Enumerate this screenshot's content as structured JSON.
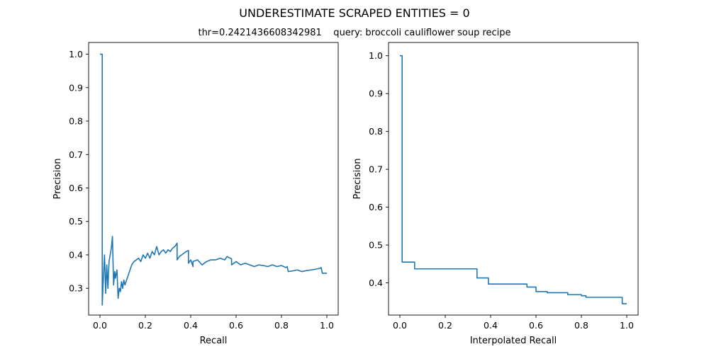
{
  "figure": {
    "suptitle": "UNDERESTIMATE SCRAPED ENTITIES = 0",
    "subtitle": "thr=0.2421436608342981    query: broccoli cauliflower soup recipe"
  },
  "chart_data": [
    {
      "type": "line",
      "xlabel": "Recall",
      "ylabel": "Precision",
      "xlim": [
        -0.05,
        1.05
      ],
      "ylim": [
        0.22,
        1.035
      ],
      "xticks": [
        0.0,
        0.2,
        0.4,
        0.6,
        0.8,
        1.0
      ],
      "xtick_labels": [
        "0.0",
        "0.2",
        "0.4",
        "0.6",
        "0.8",
        "1.0"
      ],
      "yticks": [
        0.3,
        0.4,
        0.5,
        0.6,
        0.7,
        0.8,
        0.9,
        1.0
      ],
      "ytick_labels": [
        "0.3",
        "0.4",
        "0.5",
        "0.6",
        "0.7",
        "0.8",
        "0.9",
        "1.0"
      ],
      "color": "#1f77b4",
      "grid": false,
      "series": [
        {
          "x": [
            0.0,
            0.01,
            0.01,
            0.015,
            0.02,
            0.025,
            0.03,
            0.035,
            0.04,
            0.045,
            0.05,
            0.055,
            0.06,
            0.065,
            0.068,
            0.075,
            0.08,
            0.085,
            0.09,
            0.095,
            0.1,
            0.105,
            0.11,
            0.12,
            0.13,
            0.14,
            0.15,
            0.16,
            0.17,
            0.18,
            0.19,
            0.2,
            0.21,
            0.22,
            0.23,
            0.24,
            0.25,
            0.26,
            0.27,
            0.28,
            0.29,
            0.3,
            0.31,
            0.32,
            0.33,
            0.34,
            0.34,
            0.35,
            0.36,
            0.37,
            0.38,
            0.39,
            0.39,
            0.4,
            0.41,
            0.41,
            0.43,
            0.45,
            0.47,
            0.49,
            0.51,
            0.53,
            0.55,
            0.56,
            0.58,
            0.58,
            0.6,
            0.61,
            0.62,
            0.64,
            0.66,
            0.68,
            0.7,
            0.72,
            0.74,
            0.76,
            0.78,
            0.8,
            0.82,
            0.825,
            0.83,
            0.85,
            0.87,
            0.89,
            0.91,
            0.93,
            0.95,
            0.97,
            0.975,
            0.98,
            1.0
          ],
          "y": [
            1.0,
            1.0,
            0.25,
            0.33,
            0.4,
            0.285,
            0.37,
            0.3,
            0.38,
            0.4,
            0.42,
            0.455,
            0.31,
            0.35,
            0.33,
            0.355,
            0.27,
            0.3,
            0.29,
            0.32,
            0.3,
            0.325,
            0.31,
            0.33,
            0.35,
            0.37,
            0.38,
            0.385,
            0.39,
            0.38,
            0.4,
            0.39,
            0.405,
            0.39,
            0.41,
            0.4,
            0.425,
            0.4,
            0.41,
            0.415,
            0.405,
            0.415,
            0.41,
            0.42,
            0.425,
            0.435,
            0.385,
            0.395,
            0.4,
            0.405,
            0.41,
            0.413,
            0.375,
            0.385,
            0.365,
            0.38,
            0.385,
            0.37,
            0.38,
            0.385,
            0.385,
            0.39,
            0.385,
            0.395,
            0.388,
            0.37,
            0.38,
            0.375,
            0.37,
            0.375,
            0.37,
            0.365,
            0.37,
            0.368,
            0.365,
            0.37,
            0.365,
            0.368,
            0.362,
            0.365,
            0.35,
            0.352,
            0.355,
            0.35,
            0.353,
            0.355,
            0.357,
            0.36,
            0.362,
            0.345,
            0.345
          ]
        }
      ]
    },
    {
      "type": "line",
      "xlabel": "Interpolated Recall",
      "ylabel": "Precision",
      "xlim": [
        -0.05,
        1.05
      ],
      "ylim": [
        0.315,
        1.035
      ],
      "xticks": [
        0.0,
        0.2,
        0.4,
        0.6,
        0.8,
        1.0
      ],
      "xtick_labels": [
        "0.0",
        "0.2",
        "0.4",
        "0.6",
        "0.8",
        "1.0"
      ],
      "yticks": [
        0.4,
        0.5,
        0.6,
        0.7,
        0.8,
        0.9,
        1.0
      ],
      "ytick_labels": [
        "0.4",
        "0.5",
        "0.6",
        "0.7",
        "0.8",
        "0.9",
        "1.0"
      ],
      "color": "#1f77b4",
      "grid": false,
      "series": [
        {
          "x": [
            0.0,
            0.01,
            0.01,
            0.065,
            0.065,
            0.34,
            0.34,
            0.39,
            0.39,
            0.56,
            0.56,
            0.6,
            0.6,
            0.65,
            0.65,
            0.74,
            0.74,
            0.8,
            0.8,
            0.82,
            0.82,
            0.98,
            0.98,
            1.0
          ],
          "y": [
            1.0,
            1.0,
            0.455,
            0.455,
            0.437,
            0.437,
            0.413,
            0.413,
            0.397,
            0.397,
            0.389,
            0.389,
            0.377,
            0.377,
            0.374,
            0.374,
            0.369,
            0.369,
            0.366,
            0.366,
            0.362,
            0.362,
            0.345,
            0.345
          ]
        }
      ]
    }
  ]
}
